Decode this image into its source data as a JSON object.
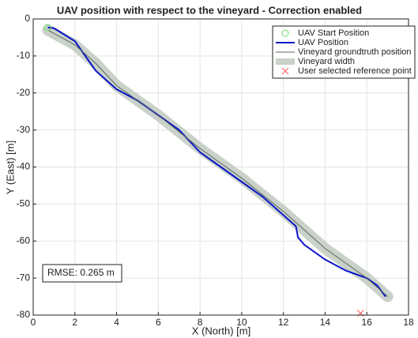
{
  "chart_data": {
    "type": "line",
    "title": "UAV position with respect to the vineyard - Correction enabled",
    "xlabel": "X (North) [m]",
    "ylabel": "Y (East) [m]",
    "xlim": [
      0,
      18
    ],
    "ylim": [
      -80,
      0
    ],
    "xticks": [
      0,
      2,
      4,
      6,
      8,
      10,
      12,
      14,
      16,
      18
    ],
    "yticks": [
      0,
      -10,
      -20,
      -30,
      -40,
      -50,
      -60,
      -70,
      -80
    ],
    "grid": true,
    "legend": "upper right",
    "annotation": "RMSE: 0.265 m",
    "series": [
      {
        "name": "UAV Start Position",
        "type": "scatter",
        "marker": "circle",
        "color": "#66dd66",
        "x": [
          0.7
        ],
        "values": [
          -2.3
        ]
      },
      {
        "name": "UAV Position",
        "type": "line",
        "color": "#0a14c8",
        "x": [
          0.7,
          1.0,
          2.0,
          2.5,
          3.0,
          4.0,
          5.0,
          6.0,
          7.0,
          8.0,
          9.0,
          10.0,
          11.0,
          12.0,
          12.6,
          12.7,
          13.0,
          14.0,
          15.0,
          16.0,
          16.5,
          16.9
        ],
        "values": [
          -2.3,
          -2.5,
          -6,
          -10,
          -14,
          -19,
          -22,
          -26,
          -30,
          -36,
          -40,
          -44,
          -48,
          -53,
          -56,
          -59,
          -61,
          -65,
          -68,
          -70,
          -72,
          -75
        ]
      },
      {
        "name": "Vineyard groundtruth position",
        "type": "line",
        "color": "#5a6a5a",
        "x": [
          0.7,
          2.0,
          3.0,
          4.0,
          6.0,
          8.0,
          10.0,
          12.0,
          14.0,
          16.0,
          17.0
        ],
        "values": [
          -3,
          -7,
          -12,
          -18,
          -26,
          -35,
          -43,
          -52,
          -62,
          -70,
          -75
        ]
      },
      {
        "name": "Vineyard width",
        "type": "band",
        "color": "#c9d1c9",
        "x": [
          0.7,
          2.0,
          3.0,
          4.0,
          6.0,
          8.0,
          10.0,
          12.0,
          14.0,
          16.0,
          17.0
        ],
        "values": [
          -3,
          -7,
          -12,
          -18,
          -26,
          -35,
          -43,
          -52,
          -62,
          -70,
          -75
        ]
      },
      {
        "name": "User selected reference point",
        "type": "scatter",
        "marker": "x",
        "color": "#ff5555",
        "x": [
          15.7
        ],
        "values": [
          -79.5
        ]
      }
    ]
  }
}
